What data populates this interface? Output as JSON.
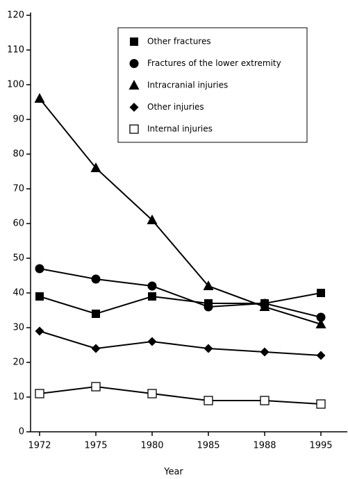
{
  "chart_data": {
    "type": "line",
    "x_label": "Year",
    "categories": [
      "1972",
      "1975",
      "1980",
      "1985",
      "1988",
      "1995"
    ],
    "series": [
      {
        "name": "Other fractures",
        "color": "#000000",
        "marker": "square",
        "values": [
          39,
          34,
          39,
          37,
          37,
          40
        ]
      },
      {
        "name": "Fractures of the lower extremity",
        "color": "#000000",
        "marker": "circle",
        "values": [
          47,
          44,
          42,
          36,
          37,
          33
        ]
      },
      {
        "name": "Intracranial injuries",
        "color": "#000000",
        "marker": "triangle",
        "values": [
          96,
          76,
          61,
          42,
          36,
          31
        ]
      },
      {
        "name": "Other injuries",
        "color": "#000000",
        "marker": "diamond",
        "values": [
          29,
          24,
          26,
          24,
          23,
          22
        ]
      },
      {
        "name": "Internal injuries",
        "color": "#000000",
        "marker": "open-square",
        "values": [
          11,
          13,
          11,
          9,
          9,
          8
        ]
      }
    ],
    "ylim": [
      0,
      120
    ],
    "yticks": [
      0,
      10,
      20,
      30,
      40,
      50,
      60,
      70,
      80,
      90,
      100,
      110,
      120
    ],
    "legend": "upper-right"
  }
}
